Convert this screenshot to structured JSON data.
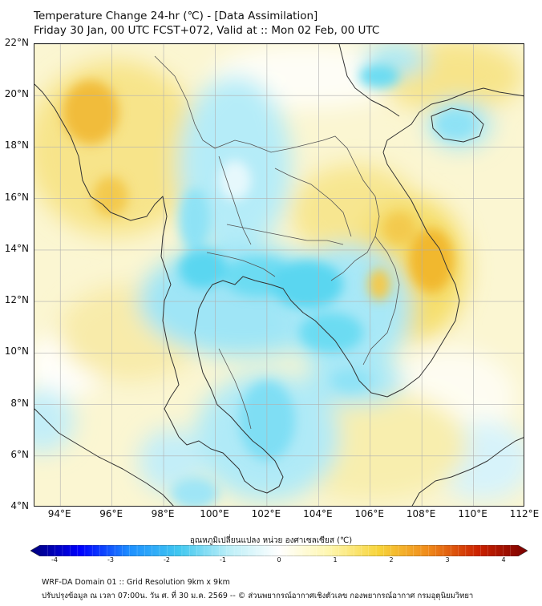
{
  "title_line1": "Temperature Change 24-hr (℃) - [Data Assimilation]",
  "title_line2": "Friday 30 Jan, 00 UTC FCST+072, Valid at :: Mon 02 Feb, 00 UTC",
  "map": {
    "lat_labels": [
      "22°N",
      "20°N",
      "18°N",
      "16°N",
      "14°N",
      "12°N",
      "10°N",
      "8°N",
      "6°N",
      "4°N"
    ],
    "lon_labels": [
      "94°E",
      "96°E",
      "98°E",
      "100°E",
      "102°E",
      "104°E",
      "106°E",
      "108°E",
      "110°E",
      "112°E"
    ],
    "lat_range": [
      4,
      22
    ],
    "lon_range": [
      93,
      112
    ],
    "colors": {
      "warm": "#f5e9a0",
      "hot": "#f1b82f",
      "cool": "#c3eef8",
      "cold": "#5ad6f0",
      "land_border": "#333333",
      "grid": "#b0b0b0"
    }
  },
  "colorbar": {
    "title": "อุณหภูมิเปลี่ยนแปลง หน่วย องศาเซลเซียส (℃)",
    "ticks": [
      "-4",
      "-3",
      "-2",
      "-1",
      "0",
      "1",
      "2",
      "3",
      "4"
    ],
    "range": [
      -4,
      4
    ],
    "stops": [
      "#00007a",
      "#0000ff",
      "#1e90ff",
      "#41c8f0",
      "#bdeff8",
      "#ffffff",
      "#fff7b0",
      "#f7d43a",
      "#f08a1a",
      "#cc2200",
      "#7a0000"
    ]
  },
  "footer_line1": "WRF-DA Domain 01 :: Grid Resolution 9km x 9km",
  "footer_line2": "ปรับปรุงข้อมูล ณ เวลา 07:00น. วัน ศ. ที่ 30 ม.ค. 2569 -- © ส่วนพยากรณ์อากาศเชิงตัวเลข กองพยากรณ์อากาศ กรมอุตุนิยมวิทยา"
}
